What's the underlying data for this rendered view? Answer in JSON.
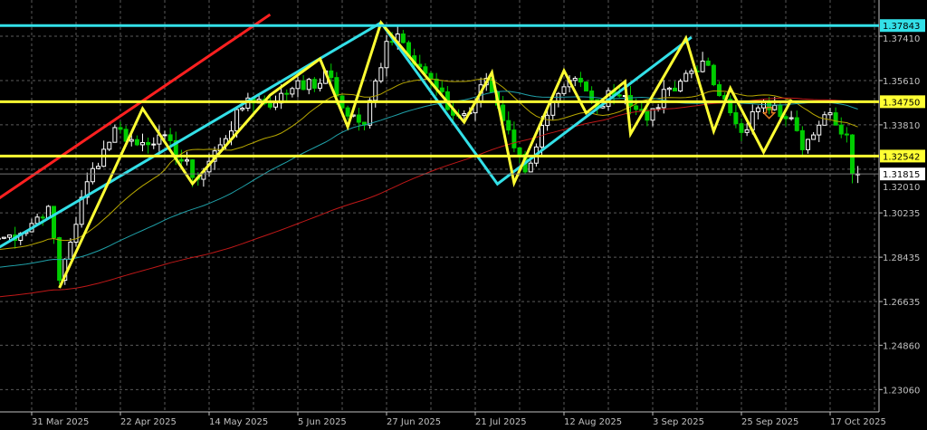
{
  "chart_data": {
    "type": "candlestick",
    "title": "",
    "ylim": [
      1.2245,
      1.3841
    ],
    "xlim": [
      "2025-03-21",
      "2025-10-24"
    ],
    "grid": true,
    "y_ticks": [
      "1.37410",
      "1.35610",
      "1.33810",
      "1.32010",
      "1.30235",
      "1.28435",
      "1.26635",
      "1.24860",
      "1.23060"
    ],
    "x_ticks": [
      {
        "date": "2025-03-31",
        "label": "31 Mar 2025"
      },
      {
        "date": "2025-04-22",
        "label": "22 Apr 2025"
      },
      {
        "date": "2025-05-14",
        "label": "14 May 2025"
      },
      {
        "date": "2025-06-05",
        "label": "5 Jun 2025"
      },
      {
        "date": "2025-06-27",
        "label": "27 Jun 2025"
      },
      {
        "date": "2025-07-21",
        "label": "21 Jul 2025"
      },
      {
        "date": "2025-08-12",
        "label": "12 Aug 2025"
      },
      {
        "date": "2025-09-03",
        "label": "3 Sep 2025"
      },
      {
        "date": "2025-09-25",
        "label": "25 Sep 2025"
      },
      {
        "date": "2025-10-17",
        "label": "17 Oct 2025"
      }
    ],
    "close_path": [
      [
        "2025-03-21",
        1.292
      ],
      [
        "2025-03-27",
        1.294
      ],
      [
        "2025-04-03",
        1.305
      ],
      [
        "2025-04-07",
        1.275
      ],
      [
        "2025-04-14",
        1.315
      ],
      [
        "2025-04-21",
        1.337
      ],
      [
        "2025-04-25",
        1.33
      ],
      [
        "2025-05-01",
        1.334
      ],
      [
        "2025-05-12",
        1.316
      ],
      [
        "2025-05-16",
        1.33
      ],
      [
        "2025-05-23",
        1.349
      ],
      [
        "2025-05-30",
        1.347
      ],
      [
        "2025-06-05",
        1.356
      ],
      [
        "2025-06-10",
        1.353
      ],
      [
        "2025-06-12",
        1.36
      ],
      [
        "2025-06-17",
        1.345
      ],
      [
        "2025-06-23",
        1.338
      ],
      [
        "2025-06-27",
        1.372
      ],
      [
        "2025-07-01",
        1.375
      ],
      [
        "2025-07-08",
        1.359
      ],
      [
        "2025-07-15",
        1.342
      ],
      [
        "2025-07-18",
        1.343
      ],
      [
        "2025-07-23",
        1.357
      ],
      [
        "2025-07-29",
        1.336
      ],
      [
        "2025-08-01",
        1.319
      ],
      [
        "2025-08-07",
        1.342
      ],
      [
        "2025-08-14",
        1.357
      ],
      [
        "2025-08-20",
        1.345
      ],
      [
        "2025-08-22",
        1.352
      ],
      [
        "2025-08-27",
        1.35
      ],
      [
        "2025-09-02",
        1.34
      ],
      [
        "2025-09-08",
        1.353
      ],
      [
        "2025-09-16",
        1.364
      ],
      [
        "2025-09-19",
        1.35
      ],
      [
        "2025-09-25",
        1.335
      ],
      [
        "2025-09-30",
        1.345
      ],
      [
        "2025-10-03",
        1.346
      ],
      [
        "2025-10-08",
        1.341
      ],
      [
        "2025-10-10",
        1.328
      ],
      [
        "2025-10-14",
        1.334
      ],
      [
        "2025-10-17",
        1.343
      ],
      [
        "2025-10-20",
        1.338
      ],
      [
        "2025-10-22",
        1.334
      ],
      [
        "2025-10-23",
        1.3182
      ]
    ],
    "moving_averages": [
      {
        "period": 20,
        "color": "#b8a800"
      },
      {
        "period": 50,
        "color": "#1fa0a8"
      },
      {
        "period": 100,
        "color": "#c01818"
      }
    ],
    "horizontal_lines": [
      {
        "price": 1.37843,
        "label": "1.37843",
        "color": "#33e0e8"
      },
      {
        "price": 1.3475,
        "label": "1.34750",
        "color": "#ffff33"
      },
      {
        "price": 1.32542,
        "label": "1.32542",
        "color": "#ffff33"
      }
    ],
    "current_price": {
      "price": 1.31815,
      "label": "1.31815"
    },
    "trendlines": [
      {
        "color": "#ff2020",
        "points": [
          [
            "2025-03-21",
            1.3081
          ],
          [
            "2025-05-29",
            1.3829
          ]
        ]
      },
      {
        "color": "#33e0e8",
        "points": [
          [
            "2025-03-21",
            1.2882
          ],
          [
            "2025-06-26",
            1.3796
          ]
        ]
      },
      {
        "color": "#33e0e8",
        "points": [
          [
            "2025-06-26",
            1.3796
          ],
          [
            "2025-07-25",
            1.3141
          ],
          [
            "2025-09-12",
            1.3737
          ]
        ]
      }
    ],
    "zigzag": {
      "color": "#ffff33",
      "points": [
        [
          "2025-04-07",
          1.2719
        ],
        [
          "2025-04-28",
          1.3447
        ],
        [
          "2025-05-09",
          1.3142
        ],
        [
          "2025-05-29",
          1.3502
        ],
        [
          "2025-06-11",
          1.3649
        ],
        [
          "2025-06-18",
          1.3373
        ],
        [
          "2025-06-26",
          1.3796
        ],
        [
          "2025-07-17",
          1.3392
        ],
        [
          "2025-07-24",
          1.3594
        ],
        [
          "2025-07-30",
          1.3145
        ],
        [
          "2025-08-12",
          1.3601
        ],
        [
          "2025-08-18",
          1.3429
        ],
        [
          "2025-08-27",
          1.3557
        ],
        [
          "2025-08-28",
          1.3344
        ],
        [
          "2025-09-11",
          1.3733
        ],
        [
          "2025-09-18",
          1.3355
        ],
        [
          "2025-09-23",
          1.353
        ],
        [
          "2025-10-01",
          1.327
        ],
        [
          "2025-10-08",
          1.3484
        ]
      ]
    },
    "annotations": [
      {
        "type": "down-arrow",
        "date": "2025-10-02",
        "price": 1.3415,
        "color": "#e07820"
      }
    ],
    "colors": {
      "background": "#000000",
      "bull": "#ffffff",
      "bear": "#00cc00",
      "grid": "#5a5a5a",
      "axis": "#c0c0c0"
    }
  }
}
